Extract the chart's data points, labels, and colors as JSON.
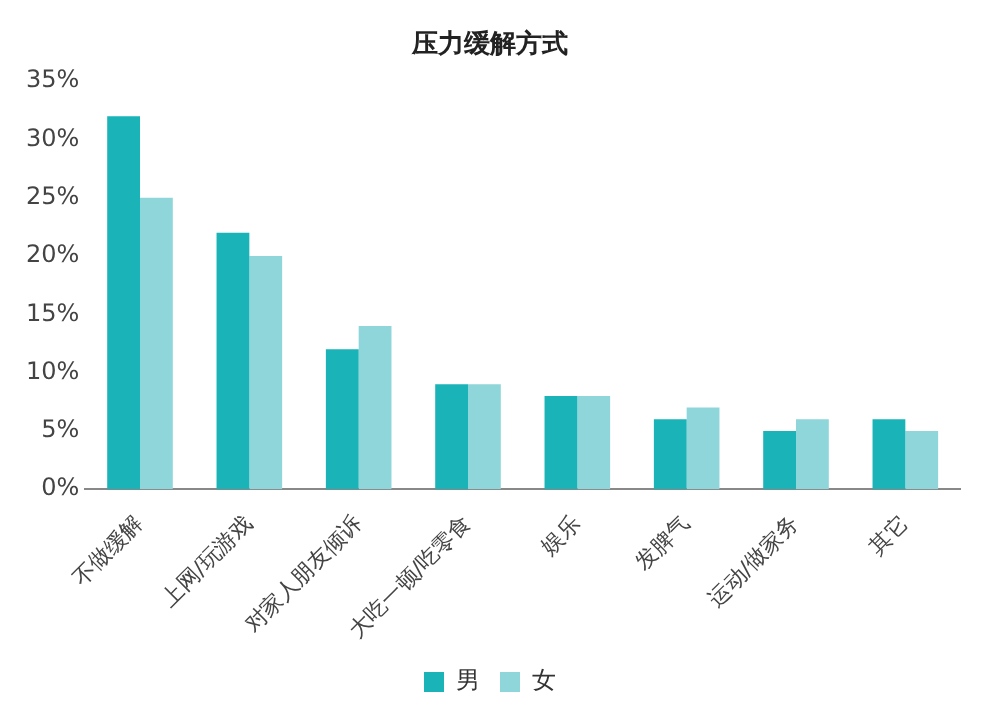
{
  "chart_data": {
    "type": "bar",
    "title": "压力缓解方式",
    "categories": [
      "不做缓解",
      "上网/玩游戏",
      "对家人朋友倾诉",
      "大吃一顿/吃零食",
      "娱乐",
      "发脾气",
      "运动/做家务",
      "其它"
    ],
    "series": [
      {
        "name": "男",
        "color": "#1ab3b8",
        "values": [
          32,
          22,
          12,
          9,
          8,
          6,
          5,
          6
        ]
      },
      {
        "name": "女",
        "color": "#8fd6da",
        "values": [
          25,
          20,
          14,
          9,
          8,
          7,
          6,
          5
        ]
      }
    ],
    "ylim": [
      0,
      35
    ],
    "yticks": [
      {
        "value": 0,
        "label": "0%"
      },
      {
        "value": 5,
        "label": "5%"
      },
      {
        "value": 10,
        "label": "10%"
      },
      {
        "value": 15,
        "label": "15%"
      },
      {
        "value": 20,
        "label": "20%"
      },
      {
        "value": 25,
        "label": "25%"
      },
      {
        "value": 30,
        "label": "30%"
      },
      {
        "value": 35,
        "label": "35%"
      }
    ],
    "legend": "bottom"
  }
}
